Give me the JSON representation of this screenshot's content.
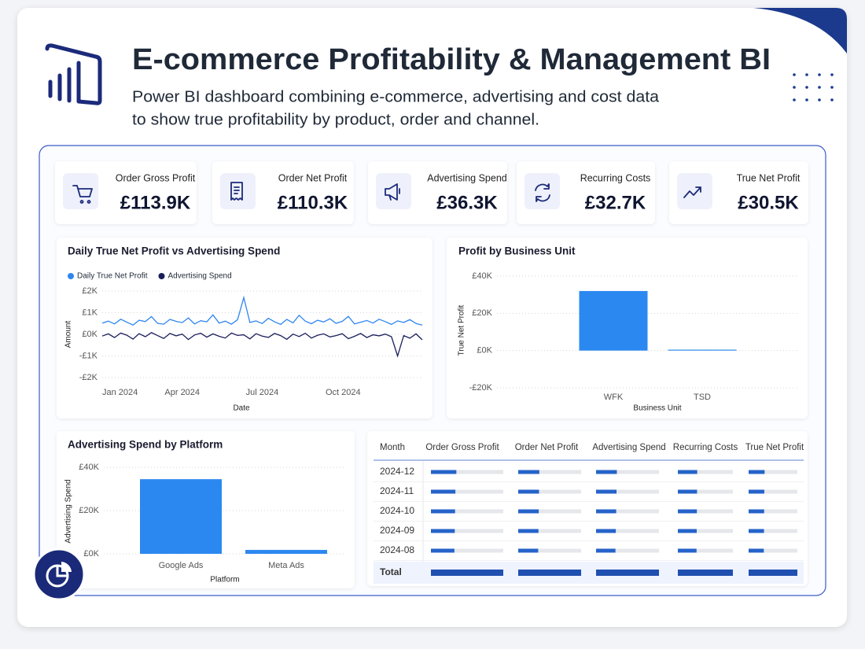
{
  "header": {
    "title": "E-commerce Profitability & Management BI",
    "subtitle": [
      "Power BI dashboard combining e-commerce, advertising and cost data",
      "to show true profitability by product, order and channel."
    ]
  },
  "kpis": [
    {
      "label": "Order Gross Profit",
      "value": "£113.9K"
    },
    {
      "label": "Order Net Profit",
      "value": "£110.3K"
    },
    {
      "label": "Advertising Spend",
      "value": "£36.3K"
    },
    {
      "label": "Recurring Costs",
      "value": "£32.7K"
    },
    {
      "label": "True Net Profit",
      "value": "£30.5K"
    }
  ],
  "chart_data": [
    {
      "type": "line",
      "title": "Daily True Net Profit vs Advertising Spend",
      "xlabel": "Date",
      "ylabel": "Amount",
      "x": [
        0,
        7,
        14,
        21,
        28,
        35,
        42,
        49,
        56,
        63,
        70,
        77,
        84,
        91,
        98,
        105,
        112,
        119,
        126,
        133,
        140,
        147,
        154,
        161,
        168,
        175,
        182,
        189,
        196,
        203,
        210,
        217,
        224,
        231,
        238,
        245,
        252,
        259,
        266,
        273,
        280,
        287,
        294,
        301,
        308,
        315,
        322,
        329,
        336,
        343,
        350,
        357,
        364
      ],
      "xlim": [
        0,
        365
      ],
      "xticks": [
        {
          "value": 0,
          "label": "Jan 2024"
        },
        {
          "value": 91,
          "label": "Apr 2024"
        },
        {
          "value": 182,
          "label": "Jul 2024"
        },
        {
          "value": 274,
          "label": "Oct 2024"
        }
      ],
      "ylim": [
        -2000,
        2000
      ],
      "yticks": [
        {
          "value": 2000,
          "label": "£2K"
        },
        {
          "value": 1000,
          "label": "£1K"
        },
        {
          "value": 0,
          "label": "£0K"
        },
        {
          "value": -1000,
          "label": "-£1K"
        },
        {
          "value": -2000,
          "label": "-£2K"
        }
      ],
      "grid": true,
      "legend": "top-left",
      "series": [
        {
          "name": "Daily True Net Profit",
          "color": "#2f86f0",
          "values": [
            520,
            610,
            480,
            700,
            560,
            430,
            650,
            590,
            820,
            510,
            470,
            690,
            600,
            540,
            760,
            480,
            630,
            580,
            900,
            520,
            610,
            470,
            680,
            1700,
            550,
            620,
            500,
            740,
            580,
            460,
            690,
            530,
            880,
            610,
            490,
            650,
            570,
            720,
            510,
            600,
            830,
            480,
            560,
            640,
            520,
            700,
            590,
            460,
            620,
            550,
            680,
            500,
            430
          ]
        },
        {
          "name": "Advertising Spend",
          "color": "#1a1f5c",
          "values": [
            -80,
            20,
            -150,
            60,
            -40,
            -220,
            30,
            -110,
            80,
            -60,
            -190,
            40,
            -70,
            10,
            -240,
            -30,
            50,
            -130,
            20,
            -90,
            -170,
            60,
            -50,
            -20,
            -210,
            30,
            -80,
            -140,
            40,
            -60,
            -230,
            10,
            -100,
            50,
            -170,
            -40,
            20,
            -120,
            -60,
            30,
            -200,
            -90,
            40,
            -150,
            -20,
            -70,
            10,
            -110,
            -1000,
            -60,
            -180,
            20,
            -250
          ]
        }
      ]
    },
    {
      "type": "bar",
      "title": "Profit by Business Unit",
      "xlabel": "Business Unit",
      "ylabel": "True Net Profit",
      "categories": [
        "WFK",
        "TSD"
      ],
      "values": [
        32000,
        500
      ],
      "color": "#2b88f0",
      "ylim": [
        -20000,
        40000
      ],
      "yticks": [
        {
          "value": 40000,
          "label": "£40K"
        },
        {
          "value": 20000,
          "label": "£20K"
        },
        {
          "value": 0,
          "label": "£0K"
        },
        {
          "value": -20000,
          "label": "-£20K"
        }
      ],
      "grid": true
    },
    {
      "type": "bar",
      "title": "Advertising Spend by Platform",
      "xlabel": "Platform",
      "ylabel": "Advertising Spend",
      "categories": [
        "Google Ads",
        "Meta Ads"
      ],
      "values": [
        34500,
        1800
      ],
      "color": "#2b88f0",
      "ylim": [
        0,
        40000
      ],
      "yticks": [
        {
          "value": 40000,
          "label": "£40K"
        },
        {
          "value": 20000,
          "label": "£20K"
        },
        {
          "value": 0,
          "label": "£0K"
        }
      ],
      "grid": true
    }
  ],
  "table": {
    "columns": [
      "Month",
      "Order Gross Profit",
      "Order Net Profit",
      "Advertising Spend",
      "Recurring Costs",
      "True Net Profit"
    ],
    "bar_color": "#2563c9",
    "rows": [
      {
        "month": "2024-12",
        "values": [
          40000,
          37000,
          12000,
          11500,
          10000
        ]
      },
      {
        "month": "2024-11",
        "values": [
          38500,
          36500,
          11800,
          11400,
          9800
        ]
      },
      {
        "month": "2024-10",
        "values": [
          38000,
          36000,
          11600,
          11300,
          9700
        ]
      },
      {
        "month": "2024-09",
        "values": [
          37500,
          35500,
          11400,
          11200,
          9600
        ]
      },
      {
        "month": "2024-08",
        "values": [
          37000,
          35000,
          11200,
          11100,
          9500
        ]
      }
    ],
    "total": {
      "label": "Total",
      "values": [
        113900,
        110300,
        36300,
        32700,
        30500
      ]
    }
  }
}
